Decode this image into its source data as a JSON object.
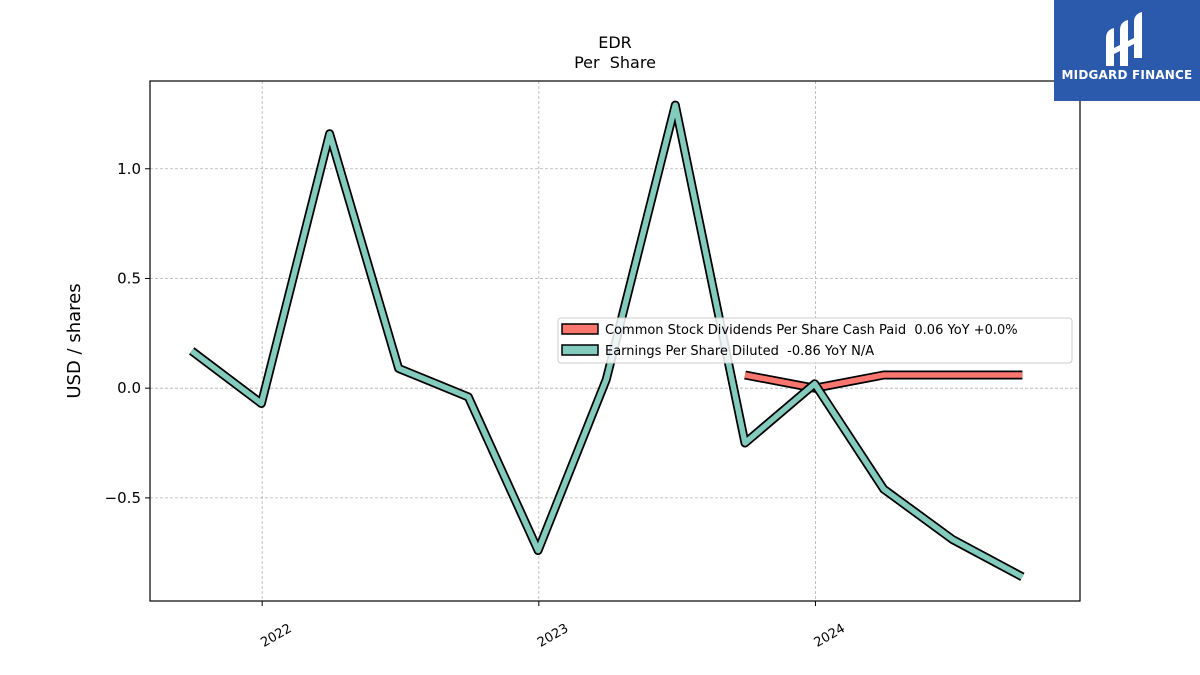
{
  "logo": {
    "text": "MIDGARD FINANCE"
  },
  "chart_data": {
    "type": "line",
    "title": "EDR",
    "subtitle": "Per  Share",
    "xlabel": "",
    "ylabel": "USD / shares",
    "x_ticks": [
      "2022",
      "2023",
      "2024"
    ],
    "y_ticks": [
      "−0.5",
      "0.0",
      "0.5",
      "1.0"
    ],
    "ylim": [
      -0.97,
      1.4
    ],
    "xlim": [
      "2021-08-06",
      "2024-12-15"
    ],
    "grid": true,
    "legend_position": "center-right",
    "series": [
      {
        "name": "Common Stock Dividends Per Share Cash Paid  0.06 YoY +0.0%",
        "color": "#f8766d",
        "x": [
          "2023-09-30",
          "2023-12-31",
          "2024-03-31",
          "2024-06-30",
          "2024-09-30"
        ],
        "y": [
          0.06,
          0.0,
          0.06,
          0.06,
          0.06
        ]
      },
      {
        "name": "Earnings Per Share Diluted  -0.86 YoY N/A",
        "color": "#82cbbd",
        "x": [
          "2021-09-30",
          "2021-12-31",
          "2022-03-31",
          "2022-06-30",
          "2022-09-30",
          "2022-12-31",
          "2023-03-31",
          "2023-06-30",
          "2023-09-30",
          "2023-12-31",
          "2024-03-31",
          "2024-06-30",
          "2024-09-30"
        ],
        "y": [
          0.17,
          -0.07,
          1.16,
          0.09,
          -0.04,
          -0.74,
          0.04,
          1.29,
          -0.25,
          0.02,
          -0.46,
          -0.69,
          -0.86
        ]
      }
    ]
  }
}
